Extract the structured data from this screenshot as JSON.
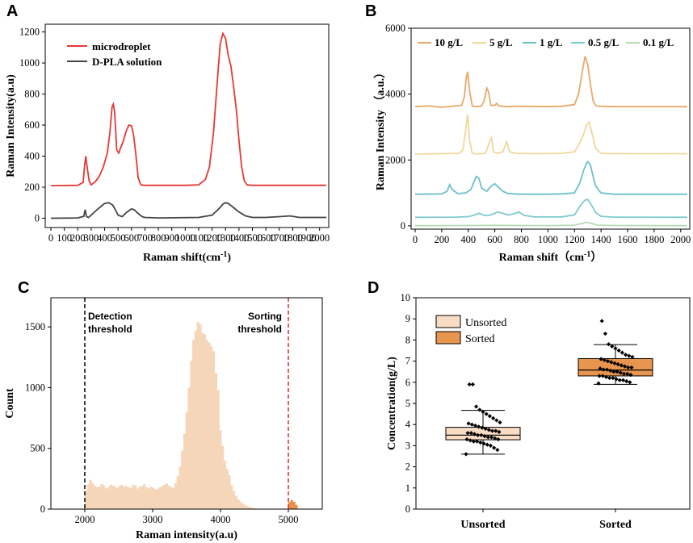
{
  "figure": {
    "panels": [
      "A",
      "B",
      "C",
      "D"
    ]
  },
  "chart_data": [
    {
      "id": "A",
      "type": "line",
      "xlabel": "Raman shift(cm",
      "xlabel_sup": "-1",
      "xlabel_tail": ")",
      "ylabel": "Raman Intensity(a.u)",
      "xlim": [
        0,
        2050
      ],
      "ylim": [
        -60,
        1250
      ],
      "xticks": [
        0,
        100,
        200,
        300,
        400,
        500,
        600,
        700,
        800,
        900,
        1000,
        1100,
        1200,
        1300,
        1400,
        1500,
        1600,
        1700,
        1800,
        1900,
        2000
      ],
      "yticks": [
        0,
        200,
        400,
        600,
        800,
        1000,
        1200
      ],
      "series": [
        {
          "name": "microdroplet",
          "color": "#e53935",
          "x": [
            0,
            200,
            240,
            250,
            260,
            270,
            285,
            300,
            330,
            360,
            390,
            420,
            440,
            455,
            465,
            475,
            490,
            505,
            520,
            540,
            560,
            580,
            600,
            615,
            630,
            650,
            670,
            700,
            800,
            900,
            1000,
            1100,
            1150,
            1180,
            1210,
            1240,
            1260,
            1280,
            1300,
            1320,
            1340,
            1360,
            1380,
            1400,
            1420,
            1440,
            1460,
            1500,
            1600,
            2050
          ],
          "y": [
            210,
            212,
            230,
            330,
            400,
            330,
            240,
            215,
            235,
            270,
            330,
            420,
            560,
            715,
            735,
            680,
            440,
            420,
            455,
            500,
            560,
            600,
            595,
            540,
            430,
            260,
            215,
            212,
            212,
            212,
            212,
            215,
            250,
            330,
            550,
            900,
            1120,
            1190,
            1160,
            1050,
            980,
            850,
            700,
            500,
            330,
            240,
            215,
            212,
            212,
            212
          ]
        },
        {
          "name": "D-PLA solution",
          "color": "#444444",
          "x": [
            0,
            200,
            245,
            255,
            265,
            280,
            300,
            350,
            400,
            430,
            460,
            480,
            500,
            530,
            560,
            600,
            620,
            650,
            680,
            700,
            800,
            1100,
            1200,
            1250,
            1280,
            1300,
            1320,
            1350,
            1400,
            1450,
            1500,
            1600,
            1700,
            1780,
            1850,
            2050
          ],
          "y": [
            0,
            2,
            12,
            55,
            10,
            5,
            20,
            60,
            95,
            100,
            85,
            55,
            20,
            10,
            35,
            60,
            55,
            30,
            10,
            5,
            2,
            5,
            20,
            60,
            90,
            100,
            95,
            75,
            40,
            15,
            5,
            5,
            10,
            15,
            5,
            5
          ]
        }
      ]
    },
    {
      "id": "B",
      "type": "line",
      "xlabel": "Raman shift（cm",
      "xlabel_sup": "-1",
      "xlabel_tail": "）",
      "ylabel": "Raman Intensity （a.u.）",
      "xlim": [
        0,
        2050
      ],
      "ylim": [
        -100,
        6000
      ],
      "xticks": [
        0,
        200,
        400,
        600,
        800,
        1000,
        1200,
        1400,
        1600,
        1800,
        2000
      ],
      "yticks": [
        0,
        2000,
        4000,
        6000
      ],
      "series": [
        {
          "name": "10 g/L",
          "color": "#e8a86a",
          "x": [
            0,
            100,
            200,
            300,
            350,
            370,
            385,
            395,
            410,
            430,
            460,
            500,
            520,
            540,
            555,
            570,
            600,
            615,
            630,
            680,
            800,
            1000,
            1100,
            1200,
            1230,
            1260,
            1280,
            1300,
            1320,
            1340,
            1360,
            1380,
            1500,
            2050
          ],
          "y": [
            3620,
            3640,
            3600,
            3640,
            3660,
            3900,
            4500,
            4680,
            4100,
            3640,
            3620,
            3640,
            3800,
            4180,
            4050,
            3660,
            3660,
            3720,
            3640,
            3620,
            3630,
            3620,
            3630,
            3680,
            4000,
            4700,
            5150,
            4900,
            4300,
            3800,
            3650,
            3630,
            3620,
            3620
          ]
        },
        {
          "name": "5 g/L",
          "color": "#f1d79b",
          "x": [
            0,
            200,
            330,
            360,
            380,
            395,
            410,
            430,
            460,
            530,
            560,
            575,
            590,
            620,
            660,
            690,
            710,
            760,
            900,
            1100,
            1200,
            1250,
            1270,
            1290,
            1310,
            1330,
            1360,
            1400,
            1500,
            2050
          ],
          "y": [
            2180,
            2190,
            2200,
            2300,
            2900,
            3380,
            2600,
            2200,
            2180,
            2200,
            2550,
            2680,
            2250,
            2200,
            2250,
            2550,
            2250,
            2200,
            2190,
            2200,
            2250,
            2600,
            2800,
            3050,
            3150,
            2850,
            2350,
            2200,
            2190,
            2190
          ]
        },
        {
          "name": "1 g/L",
          "color": "#6cc1c8",
          "x": [
            0,
            200,
            240,
            260,
            280,
            320,
            380,
            420,
            440,
            460,
            480,
            500,
            540,
            570,
            600,
            620,
            660,
            700,
            800,
            1000,
            1100,
            1200,
            1240,
            1270,
            1290,
            1300,
            1320,
            1340,
            1360,
            1400,
            1500,
            2050
          ],
          "y": [
            960,
            970,
            1050,
            1250,
            1100,
            980,
            1000,
            1100,
            1300,
            1500,
            1450,
            1150,
            1050,
            1200,
            1280,
            1200,
            1050,
            980,
            960,
            960,
            970,
            1000,
            1300,
            1700,
            1900,
            1950,
            1850,
            1500,
            1200,
            1000,
            960,
            960
          ]
        },
        {
          "name": "0.5 g/L",
          "color": "#7fcacf",
          "x": [
            0,
            300,
            400,
            450,
            480,
            520,
            560,
            600,
            620,
            660,
            700,
            740,
            780,
            820,
            900,
            1100,
            1200,
            1250,
            1280,
            1300,
            1330,
            1360,
            1400,
            1500,
            2050
          ],
          "y": [
            260,
            265,
            280,
            330,
            380,
            320,
            320,
            380,
            420,
            380,
            330,
            360,
            420,
            320,
            270,
            270,
            330,
            650,
            780,
            800,
            620,
            400,
            290,
            265,
            260
          ]
        },
        {
          "name": "0.1 g/L",
          "color": "#b8d9b6",
          "x": [
            0,
            400,
            600,
            800,
            1000,
            1200,
            1260,
            1290,
            1320,
            1380,
            1500,
            2050
          ],
          "y": [
            5,
            10,
            15,
            10,
            8,
            20,
            80,
            110,
            80,
            20,
            10,
            5
          ]
        }
      ]
    },
    {
      "id": "C",
      "type": "bar",
      "xlabel": "Raman intensity(a.u)",
      "ylabel": "Count",
      "xlim": [
        1500,
        5500
      ],
      "ylim": [
        0,
        1740
      ],
      "xticks": [
        2000,
        3000,
        4000,
        5000
      ],
      "yticks": [
        0,
        500,
        1000,
        1500
      ],
      "bin_width": 33,
      "bins_start": 2000,
      "values": [
        155,
        205,
        240,
        215,
        190,
        180,
        185,
        205,
        195,
        170,
        180,
        200,
        195,
        185,
        175,
        190,
        200,
        185,
        190,
        180,
        175,
        200,
        195,
        170,
        185,
        190,
        205,
        180,
        170,
        185,
        175,
        160,
        165,
        180,
        190,
        200,
        210,
        195,
        180,
        175,
        215,
        270,
        350,
        480,
        620,
        800,
        1000,
        1220,
        1390,
        1470,
        1540,
        1520,
        1450,
        1440,
        1390,
        1370,
        1340,
        1300,
        1120,
        980,
        650,
        520,
        400,
        330,
        280,
        200,
        150,
        110,
        80,
        60,
        45,
        35,
        25,
        18,
        12,
        8
      ],
      "sorted_values": [
        60,
        75,
        60,
        35
      ],
      "sorted_start": 5000,
      "thresholds": [
        {
          "value": 2000,
          "label_line1": "Detection",
          "label_line2": "threshold",
          "color": "#000000"
        },
        {
          "value": 5000,
          "label_line1": "Sorting",
          "label_line2": "threshold",
          "color": "#d32f2f"
        }
      ],
      "colors": {
        "unsorted": "#f6d6b8",
        "sorted": "#e8914a"
      }
    },
    {
      "id": "D",
      "type": "box",
      "xlabel": "",
      "ylabel": "Concentration(g/L)",
      "ylim": [
        0,
        10
      ],
      "yticks": [
        0,
        1,
        2,
        3,
        4,
        5,
        6,
        7,
        8,
        9,
        10
      ],
      "categories": [
        "Unsorted",
        "Sorted"
      ],
      "legend": [
        "Unsorted",
        "Sorted"
      ],
      "colors": {
        "Unsorted": "#f9dcc4",
        "Sorted": "#e8954f"
      },
      "boxes": [
        {
          "name": "Unsorted",
          "whisker_low": 2.6,
          "q1": 3.28,
          "median": 3.5,
          "q3": 3.87,
          "whisker_high": 4.67,
          "points": [
            2.6,
            2.8,
            2.9,
            3.0,
            3.05,
            3.1,
            3.15,
            3.2,
            3.2,
            3.25,
            3.3,
            3.3,
            3.35,
            3.4,
            3.4,
            3.45,
            3.5,
            3.5,
            3.55,
            3.6,
            3.6,
            3.65,
            3.7,
            3.7,
            3.75,
            3.8,
            3.85,
            3.9,
            3.95,
            4.0,
            4.05,
            4.1,
            4.2,
            4.3,
            4.4,
            4.5,
            4.6,
            4.7,
            4.85,
            5.9,
            5.9
          ]
        },
        {
          "name": "Sorted",
          "whisker_low": 5.9,
          "q1": 6.3,
          "median": 6.58,
          "q3": 7.12,
          "whisker_high": 7.78,
          "points": [
            5.95,
            6.0,
            6.05,
            6.1,
            6.1,
            6.15,
            6.2,
            6.2,
            6.25,
            6.3,
            6.3,
            6.35,
            6.4,
            6.4,
            6.45,
            6.5,
            6.5,
            6.55,
            6.6,
            6.6,
            6.65,
            6.7,
            6.7,
            6.75,
            6.8,
            6.85,
            6.9,
            6.95,
            7.0,
            7.05,
            7.1,
            7.2,
            7.25,
            7.3,
            7.4,
            7.5,
            7.6,
            7.7,
            7.8,
            8.3,
            8.9
          ]
        }
      ]
    }
  ]
}
